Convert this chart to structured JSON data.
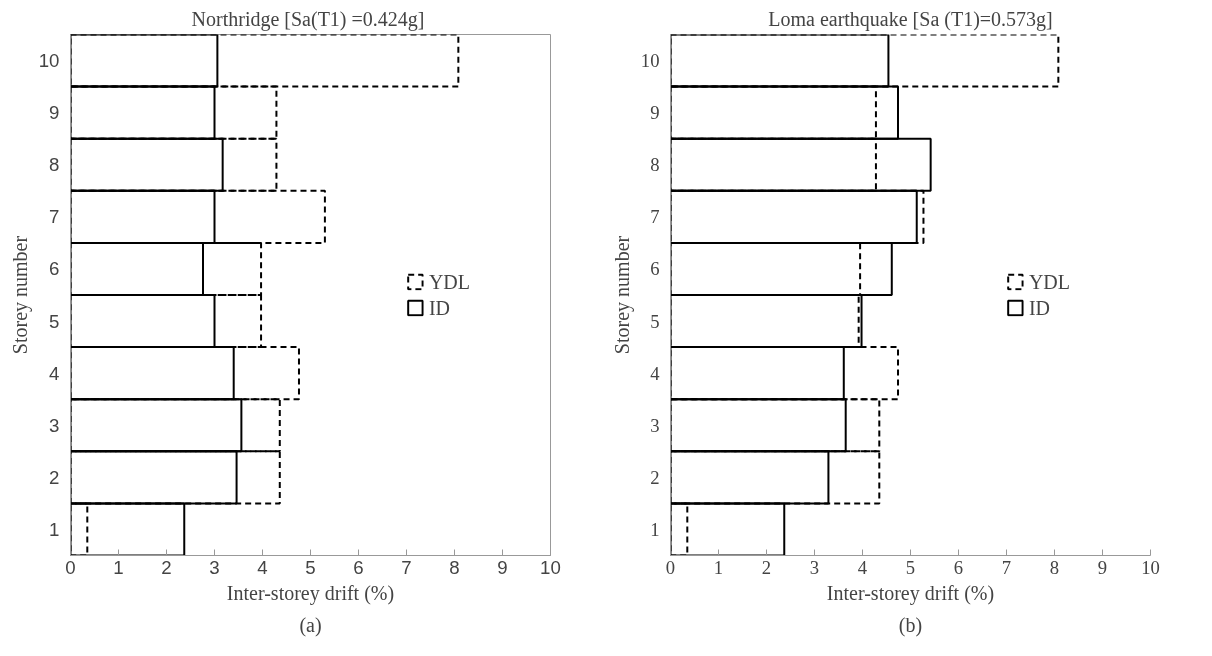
{
  "chart_data": [
    {
      "type": "bar",
      "orientation": "horizontal",
      "title": "Northridge  [Sa(T1) =0.424g]",
      "xlabel": "Inter-storey drift (%)",
      "ylabel": "Storey number",
      "categories": [
        "10",
        "9",
        "8",
        "7",
        "6",
        "5",
        "4",
        "3",
        "2",
        "1"
      ],
      "series": [
        {
          "name": "YDL",
          "color": "#000000",
          "line_style": "dashed",
          "values": [
            8.08,
            4.29,
            4.29,
            5.3,
            3.97,
            3.97,
            4.76,
            4.36,
            4.36,
            0.35
          ]
        },
        {
          "name": "ID",
          "color": "#000000",
          "line_style": "solid",
          "values": [
            3.06,
            3.0,
            3.17,
            3.0,
            2.76,
            3.0,
            3.4,
            3.56,
            3.46,
            2.37
          ]
        }
      ],
      "xlim": [
        0,
        10
      ],
      "xticks": [
        0,
        1,
        2,
        3,
        4,
        5,
        6,
        7,
        8,
        9,
        10
      ],
      "grid": false,
      "legend": "right",
      "annotations": [
        "(a)"
      ]
    },
    {
      "type": "bar",
      "orientation": "horizontal",
      "title": "Loma earthquake [Sa (T1)=0.573g]",
      "xlabel": "Inter-storey drift (%)",
      "ylabel": "Storey number",
      "categories": [
        "10",
        "9",
        "8",
        "7",
        "6",
        "5",
        "4",
        "3",
        "2",
        "1"
      ],
      "series": [
        {
          "name": "YDL",
          "color": "#000000",
          "line_style": "dashed",
          "values": [
            8.08,
            4.28,
            4.28,
            5.27,
            3.95,
            3.92,
            4.74,
            4.35,
            4.35,
            0.35
          ]
        },
        {
          "name": "ID",
          "color": "#000000",
          "line_style": "solid",
          "values": [
            4.54,
            4.74,
            5.42,
            5.13,
            4.61,
            3.98,
            3.61,
            3.65,
            3.29,
            2.37
          ]
        }
      ],
      "xlim": [
        0,
        10
      ],
      "xticks": [
        0,
        1,
        2,
        3,
        4,
        5,
        6,
        7,
        8,
        9,
        10
      ],
      "grid": false,
      "legend": "right",
      "annotations": [
        "(b)"
      ]
    }
  ]
}
